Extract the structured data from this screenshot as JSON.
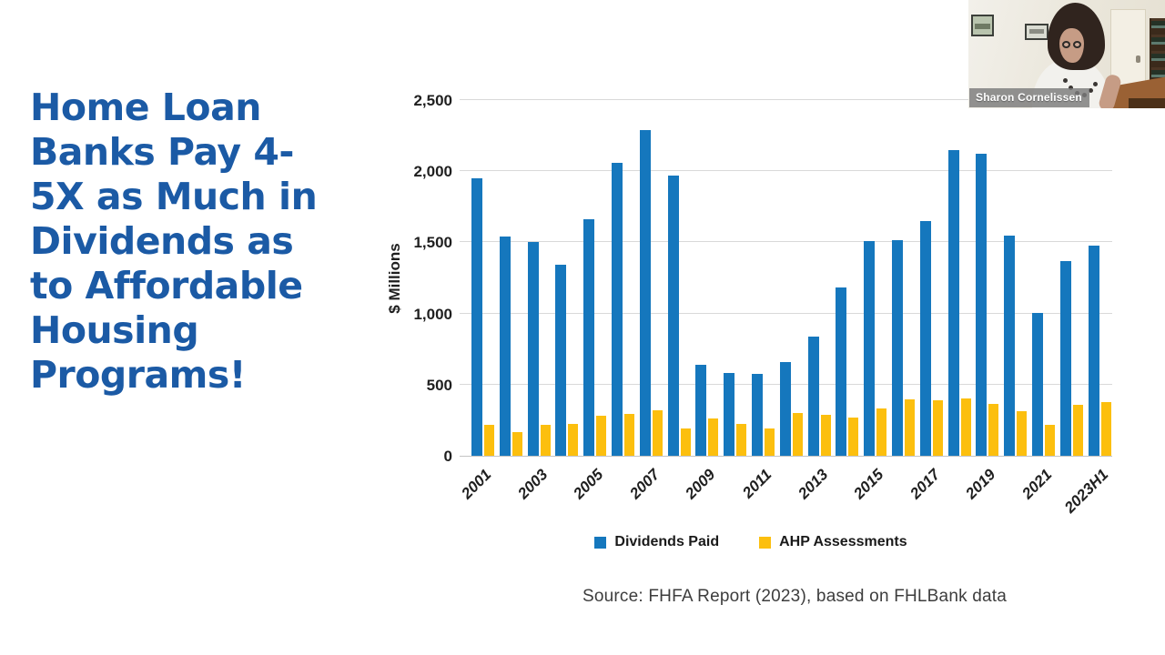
{
  "slide": {
    "title_lines": [
      "Home Loan",
      "Banks Pay 4-",
      "5X as Much in",
      "Dividends as",
      "to Affordable",
      "Housing",
      "Programs!"
    ],
    "source_note": "Source: FHFA Report (2023), based on FHLBank data"
  },
  "webcam": {
    "participant_name": "Sharon Cornelissen"
  },
  "colors": {
    "title_blue": "#1b5aa5",
    "dividends_blue": "#1577bd",
    "ahp_yellow": "#fcbf0e",
    "gridline": "#d9d9d9",
    "axis_text": "#1f1f1f",
    "source_text": "#3d3d3d"
  },
  "chart_data": {
    "type": "bar",
    "title": "",
    "xlabel": "",
    "ylabel": "$ Millions",
    "units": "$ Millions",
    "ylim": [
      0,
      2500
    ],
    "ytick_interval": 500,
    "yticks": [
      "0",
      "500",
      "1,000",
      "1,500",
      "2,000",
      "2,500"
    ],
    "grid": true,
    "legend_position": "bottom",
    "categories": [
      "2001",
      "2002",
      "2003",
      "2004",
      "2005",
      "2006",
      "2007",
      "2008",
      "2009",
      "2010",
      "2011",
      "2012",
      "2013",
      "2014",
      "2015",
      "2016",
      "2017",
      "2018",
      "2019",
      "2020",
      "2021",
      "2022",
      "2023H1"
    ],
    "xticks": [
      "2001",
      "2003",
      "2005",
      "2007",
      "2009",
      "2011",
      "2013",
      "2015",
      "2017",
      "2019",
      "2021",
      "2023H1"
    ],
    "series": [
      {
        "name": "Dividends Paid",
        "color": "#1577bd",
        "values": [
          1950,
          1540,
          1500,
          1345,
          1665,
          2060,
          2290,
          1970,
          640,
          580,
          575,
          660,
          840,
          1180,
          1510,
          1515,
          1650,
          2150,
          2120,
          1550,
          1005,
          1370,
          1475
        ]
      },
      {
        "name": "AHP Assessments",
        "color": "#fcbf0e",
        "values": [
          220,
          165,
          215,
          225,
          280,
          295,
          320,
          190,
          260,
          225,
          190,
          300,
          290,
          270,
          330,
          395,
          390,
          405,
          365,
          315,
          220,
          355,
          375
        ]
      }
    ]
  }
}
